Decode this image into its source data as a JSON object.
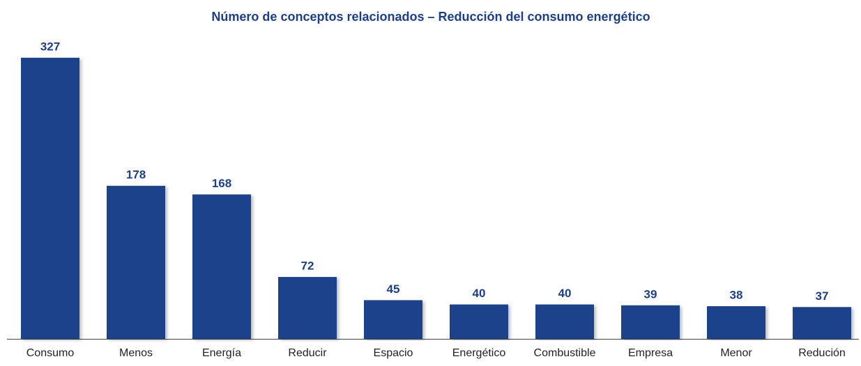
{
  "chart_data": {
    "type": "bar",
    "title": "Número de conceptos relacionados – Reducción del consumo energético",
    "categories": [
      "Consumo",
      "Menos",
      "Energía",
      "Reducir",
      "Espacio",
      "Energético",
      "Combustible",
      "Empresa",
      "Menor",
      "Redución"
    ],
    "values": [
      327,
      178,
      168,
      72,
      45,
      40,
      40,
      39,
      38,
      37
    ],
    "color": "#1b428c"
  }
}
